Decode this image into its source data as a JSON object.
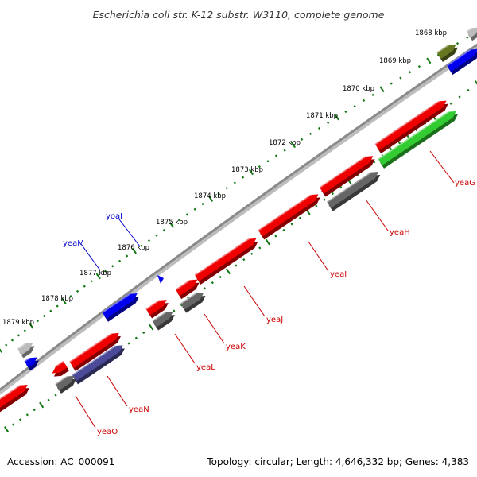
{
  "title": "Escherichia coli str. K-12 substr. W3110, complete genome",
  "footer": {
    "accession": "Accession: AC_000091",
    "topology": "Topology: circular; Length: 4,646,332 bp; Genes: 4,383"
  },
  "colors": {
    "backbone": "#8a8a8a",
    "ticks": "#117711",
    "tick_label": "#000000",
    "red_gene": "#ee0000",
    "red_label": "#cc0000",
    "blue_gene": "#0000ee",
    "blue_label": "#0000cc",
    "gray_gene": "#666666",
    "lightgray_gene": "#bbbbbb",
    "navy_gene": "#4a4a99",
    "green_gene": "#33cc33",
    "olive_gene": "#667722"
  },
  "kbp_labels": [
    "1868 kbp",
    "1869 kbp",
    "1870 kbp",
    "1871 kbp",
    "1872 kbp",
    "1873 kbp",
    "1874 kbp",
    "1875 kbp",
    "1876 kbp",
    "1877 kbp",
    "1878 kbp",
    "1879 kbp"
  ],
  "genes": [
    {
      "label": "yeaG",
      "color": "red_label"
    },
    {
      "label": "yeaH",
      "color": "red_label"
    },
    {
      "label": "yeaI",
      "color": "red_label"
    },
    {
      "label": "yeaJ",
      "color": "red_label"
    },
    {
      "label": "yeaK",
      "color": "red_label"
    },
    {
      "label": "yeaL",
      "color": "red_label"
    },
    {
      "label": "yeaN",
      "color": "red_label"
    },
    {
      "label": "yeaO",
      "color": "red_label"
    },
    {
      "label": "yoaI",
      "color": "blue_label"
    },
    {
      "label": "yeaM",
      "color": "blue_label"
    }
  ]
}
